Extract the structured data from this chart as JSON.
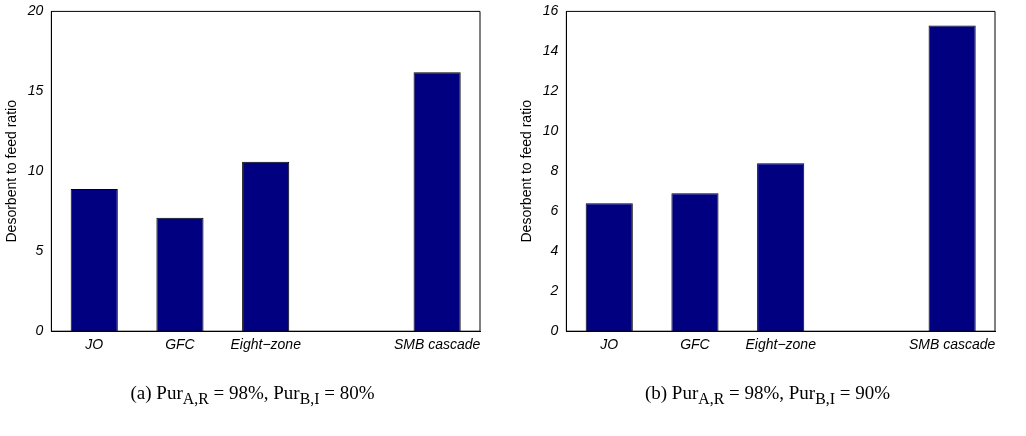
{
  "chart_data": [
    {
      "type": "bar",
      "categories": [
        "JO",
        "GFC",
        "Eight−zone",
        null,
        "SMB cascade"
      ],
      "values": [
        8.9,
        7.1,
        10.6,
        null,
        16.2
      ],
      "color": "#000080",
      "ylabel": "Desorbent to feed ratio",
      "ylim": [
        0,
        20
      ],
      "yticks": [
        0,
        5,
        10,
        15,
        20
      ],
      "grid": false,
      "legend": false,
      "annotations": [
        "(a) Pur$_{A,R}$ = 98%,  Pur$_{B,I}$ = 80%"
      ]
    },
    {
      "type": "bar",
      "categories": [
        "JO",
        "GFC",
        "Eight−zone",
        null,
        "SMB cascade"
      ],
      "values": [
        6.4,
        6.9,
        8.4,
        null,
        15.3
      ],
      "color": "#000080",
      "ylabel": "Desorbent to feed ratio",
      "ylim": [
        0,
        16
      ],
      "yticks": [
        0,
        2,
        4,
        6,
        8,
        10,
        12,
        14,
        16
      ],
      "grid": false,
      "legend": false,
      "annotations": [
        "(b) Pur$_{A,R}$ = 98%,  Pur$_{B,I}$ = 90%"
      ]
    }
  ]
}
